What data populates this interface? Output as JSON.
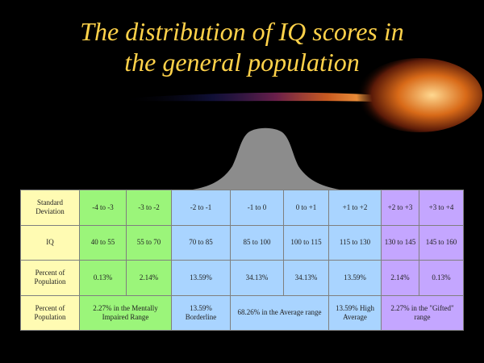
{
  "slide": {
    "title_line_1": "The distribution of IQ scores in",
    "title_line_2": "the general population"
  },
  "colors": {
    "background": "#000000",
    "title": "#ffd24a",
    "row_header": "#fffbb3",
    "low_range": "#9bf57a",
    "middle_range": "#a9d4ff",
    "gifted_range": "#c4a6ff",
    "bell_curve": "#8c8c8c"
  },
  "table": {
    "rows": [
      {
        "header": "Standard Deviation",
        "cells": [
          "-4 to -3",
          "-3 to -2",
          "-2 to -1",
          "-1 to 0",
          "0 to +1",
          "+1 to +2",
          "+2 to +3",
          "+3 to +4"
        ]
      },
      {
        "header": "IQ",
        "cells": [
          "40 to 55",
          "55 to 70",
          "70 to 85",
          "85 to 100",
          "100 to 115",
          "115 to 130",
          "130 to 145",
          "145 to 160"
        ]
      },
      {
        "header": "Percent of Population",
        "cells": [
          "0.13%",
          "2.14%",
          "13.59%",
          "34.13%",
          "34.13%",
          "13.59%",
          "2.14%",
          "0.13%"
        ]
      },
      {
        "header": "Percent of Population",
        "groups": [
          "2.27% in the Mentally Impaired Range",
          "13.59% Borderline",
          "68.26% in the Average range",
          "13.59% High Average",
          "2.27% in the \"Gifted\" range"
        ]
      }
    ]
  }
}
